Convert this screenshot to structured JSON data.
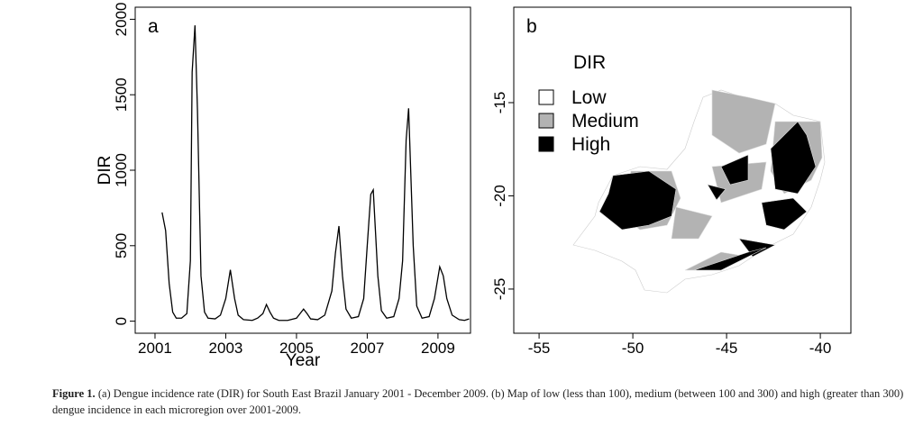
{
  "chart_data": [
    {
      "type": "line",
      "panel_label": "a",
      "x_label": "Year",
      "y_label": "DIR",
      "color": "#000000",
      "x": [
        2001.2,
        2001.3,
        2001.4,
        2001.5,
        2001.6,
        2001.75,
        2001.9,
        2002.0,
        2002.05,
        2002.13,
        2002.2,
        2002.3,
        2002.4,
        2002.5,
        2002.7,
        2002.85,
        2003.0,
        2003.13,
        2003.25,
        2003.35,
        2003.5,
        2003.75,
        2003.9,
        2004.05,
        2004.15,
        2004.25,
        2004.35,
        2004.5,
        2004.75,
        2005.0,
        2005.1,
        2005.2,
        2005.3,
        2005.4,
        2005.6,
        2005.8,
        2006.0,
        2006.1,
        2006.2,
        2006.3,
        2006.4,
        2006.55,
        2006.75,
        2006.9,
        2007.0,
        2007.1,
        2007.17,
        2007.3,
        2007.4,
        2007.55,
        2007.75,
        2007.9,
        2008.0,
        2008.1,
        2008.17,
        2008.3,
        2008.4,
        2008.55,
        2008.75,
        2008.9,
        2009.05,
        2009.15,
        2009.25,
        2009.4,
        2009.6,
        2009.75,
        2009.88
      ],
      "values": [
        720,
        600,
        250,
        60,
        20,
        20,
        50,
        400,
        1650,
        1960,
        1400,
        300,
        60,
        20,
        15,
        40,
        150,
        340,
        150,
        40,
        10,
        5,
        20,
        50,
        110,
        60,
        20,
        5,
        5,
        20,
        50,
        80,
        50,
        15,
        10,
        40,
        200,
        450,
        630,
        300,
        80,
        20,
        30,
        150,
        500,
        840,
        870,
        300,
        70,
        20,
        30,
        150,
        400,
        1200,
        1410,
        500,
        100,
        20,
        30,
        150,
        360,
        300,
        150,
        40,
        10,
        5,
        15
      ],
      "xlim": [
        2000.44,
        2009.92
      ],
      "xticks": [
        2001,
        2003,
        2005,
        2007,
        2009
      ],
      "ylim": [
        -80,
        2080
      ],
      "yticks": [
        0,
        500,
        1000,
        1500,
        2000
      ]
    },
    {
      "type": "map",
      "panel_label": "b",
      "xlim": [
        -56.35,
        -38.37
      ],
      "xticks": [
        -55,
        -50,
        -45,
        -40
      ],
      "ylim": [
        -27.37,
        -9.88
      ],
      "yticks": [
        -25,
        -20,
        -15
      ],
      "legend": {
        "title": "DIR",
        "corner": "top-left",
        "entries": [
          {
            "name": "Low",
            "color": "#ffffff"
          },
          {
            "name": "Medium",
            "color": "#b3b3b3"
          },
          {
            "name": "High",
            "color": "#000000"
          }
        ]
      }
    }
  ],
  "caption": {
    "label": "Figure 1.",
    "text": "(a) Dengue incidence rate (DIR) for South East Brazil January 2001 - December 2009. (b) Map of low (less than 100), medium (between 100 and 300) and high (greater than 300) dengue incidence in each microregion over 2001-2009."
  }
}
